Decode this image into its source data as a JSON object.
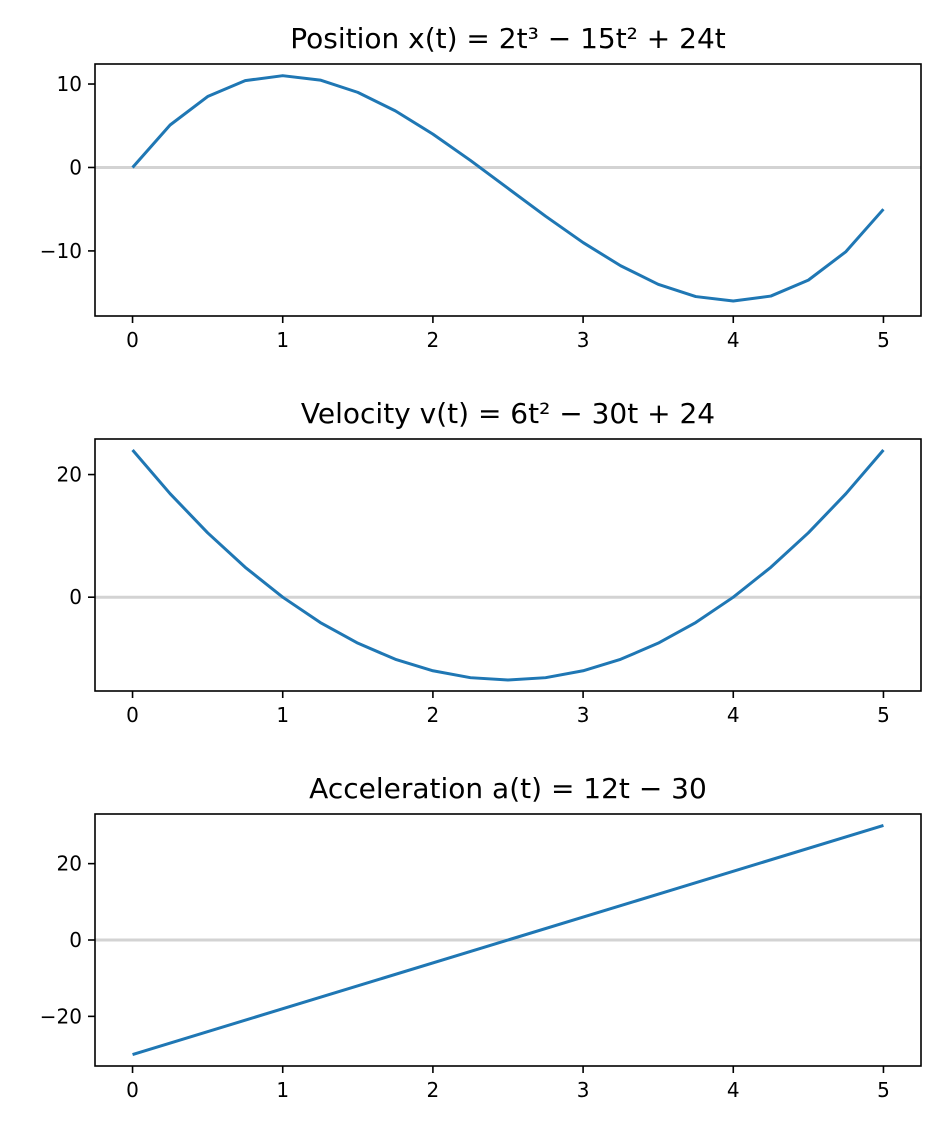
{
  "chart_data": [
    {
      "type": "line",
      "title": "Position x(t) = 2t³ − 15t² + 24t",
      "xlabel": "",
      "ylabel": "",
      "xlim": [
        -0.25,
        5.25
      ],
      "ylim": [
        -17.8,
        12.4
      ],
      "xticks": [
        0,
        1,
        2,
        3,
        4,
        5
      ],
      "xtick_labels": [
        "0",
        "1",
        "2",
        "3",
        "4",
        "5"
      ],
      "yticks": [
        10,
        0,
        -10
      ],
      "ytick_labels": [
        "10",
        "0",
        "−10"
      ],
      "reference_line_y": 0,
      "grid": false,
      "series": [
        {
          "color": "#1f77b4",
          "x": [
            0,
            0.25,
            0.5,
            0.75,
            1,
            1.25,
            1.5,
            1.75,
            2,
            2.25,
            2.5,
            2.75,
            3,
            3.25,
            3.5,
            3.75,
            4,
            4.25,
            4.5,
            4.75,
            5
          ],
          "y": [
            0,
            5.09,
            8.5,
            10.41,
            11,
            10.47,
            9,
            6.78,
            4,
            0.84,
            -2.5,
            -5.84,
            -9,
            -11.78,
            -14,
            -15.47,
            -16,
            -15.41,
            -13.5,
            -10.09,
            -5
          ]
        }
      ]
    },
    {
      "type": "line",
      "title": "Velocity v(t) = 6t² − 30t + 24",
      "xlabel": "",
      "ylabel": "",
      "xlim": [
        -0.25,
        5.25
      ],
      "ylim": [
        -15.3,
        25.8
      ],
      "xticks": [
        0,
        1,
        2,
        3,
        4,
        5
      ],
      "xtick_labels": [
        "0",
        "1",
        "2",
        "3",
        "4",
        "5"
      ],
      "yticks": [
        20,
        0
      ],
      "ytick_labels": [
        "20",
        "0"
      ],
      "reference_line_y": 0,
      "grid": false,
      "series": [
        {
          "color": "#1f77b4",
          "x": [
            0,
            0.25,
            0.5,
            0.75,
            1,
            1.25,
            1.5,
            1.75,
            2,
            2.25,
            2.5,
            2.75,
            3,
            3.25,
            3.5,
            3.75,
            4,
            4.25,
            4.5,
            4.75,
            5
          ],
          "y": [
            24,
            16.88,
            10.5,
            4.88,
            0,
            -4.13,
            -7.5,
            -10.13,
            -12,
            -13.13,
            -13.5,
            -13.13,
            -12,
            -10.13,
            -7.5,
            -4.13,
            0,
            4.88,
            10.5,
            16.88,
            24
          ]
        }
      ]
    },
    {
      "type": "line",
      "title": "Acceleration a(t) = 12t − 30",
      "xlabel": "",
      "ylabel": "",
      "xlim": [
        -0.25,
        5.25
      ],
      "ylim": [
        -33,
        33
      ],
      "xticks": [
        0,
        1,
        2,
        3,
        4,
        5
      ],
      "xtick_labels": [
        "0",
        "1",
        "2",
        "3",
        "4",
        "5"
      ],
      "yticks": [
        20,
        0,
        -20
      ],
      "ytick_labels": [
        "20",
        "0",
        "−20"
      ],
      "reference_line_y": 0,
      "grid": false,
      "series": [
        {
          "color": "#1f77b4",
          "x": [
            0,
            5
          ],
          "y": [
            -30,
            30
          ]
        }
      ]
    }
  ],
  "colors": {
    "line": "#1f77b4",
    "reference_line": "#d3d3d3",
    "axes": "#000000"
  }
}
